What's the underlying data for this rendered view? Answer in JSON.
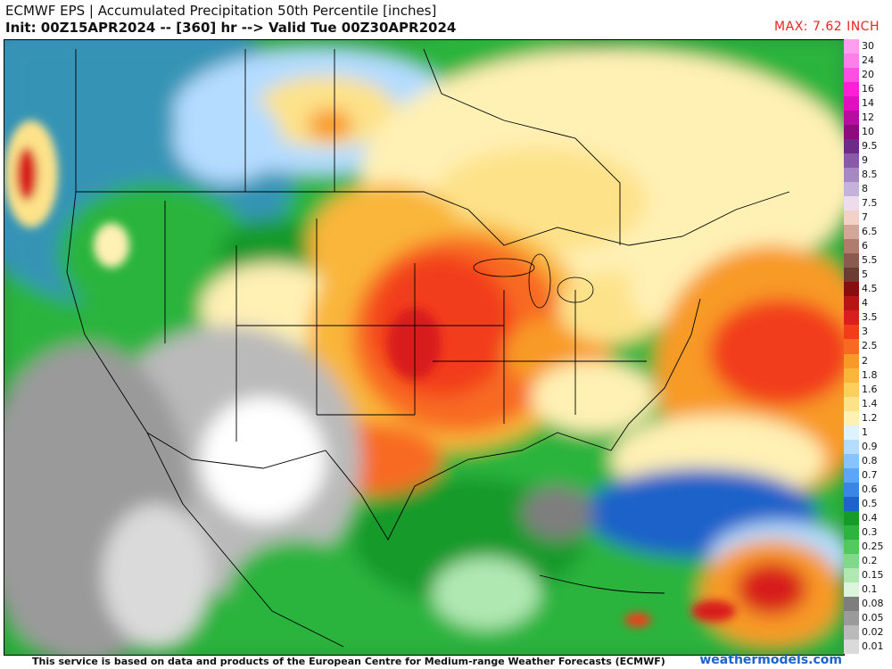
{
  "header": {
    "title": "ECMWF EPS | Accumulated Precipitation 50th Percentile [inches]",
    "subtitle": "Init: 00Z15APR2024 -- [360] hr --> Valid Tue 00Z30APR2024",
    "max_label": "MAX: 7.62 INCH"
  },
  "legend": [
    {
      "label": "30",
      "color": "#ff9ef0"
    },
    {
      "label": "24",
      "color": "#ff7fe8"
    },
    {
      "label": "20",
      "color": "#ff4fe0"
    },
    {
      "label": "16",
      "color": "#ff1fd6"
    },
    {
      "label": "14",
      "color": "#e00fbf"
    },
    {
      "label": "12",
      "color": "#b80d9e"
    },
    {
      "label": "10",
      "color": "#8e0b7c"
    },
    {
      "label": "9.5",
      "color": "#6e2a86"
    },
    {
      "label": "9",
      "color": "#8a5aa8"
    },
    {
      "label": "8.5",
      "color": "#a688c2"
    },
    {
      "label": "8",
      "color": "#c4b2da"
    },
    {
      "label": "7.5",
      "color": "#ecdcec"
    },
    {
      "label": "7",
      "color": "#f2d2c8"
    },
    {
      "label": "6.5",
      "color": "#d2a698"
    },
    {
      "label": "6",
      "color": "#b07c6e"
    },
    {
      "label": "5.5",
      "color": "#8a5a4e"
    },
    {
      "label": "5",
      "color": "#6a3c32"
    },
    {
      "label": "4.5",
      "color": "#8a0d0d"
    },
    {
      "label": "4",
      "color": "#b81414"
    },
    {
      "label": "3.5",
      "color": "#d81e1e"
    },
    {
      "label": "3",
      "color": "#f23c1a"
    },
    {
      "label": "2.5",
      "color": "#f86a22"
    },
    {
      "label": "2",
      "color": "#f89a28"
    },
    {
      "label": "1.8",
      "color": "#f9b63a"
    },
    {
      "label": "1.6",
      "color": "#fbcf5a"
    },
    {
      "label": "1.4",
      "color": "#fde28a"
    },
    {
      "label": "1.2",
      "color": "#fff0b4"
    },
    {
      "label": "1",
      "color": "#dff2ff"
    },
    {
      "label": "0.9",
      "color": "#b4dcff"
    },
    {
      "label": "0.8",
      "color": "#88c2ff"
    },
    {
      "label": "0.7",
      "color": "#5ca6fa"
    },
    {
      "label": "0.6",
      "color": "#3a86e8"
    },
    {
      "label": "0.5",
      "color": "#1f62c9"
    },
    {
      "label": "0.4",
      "color": "#169a2a"
    },
    {
      "label": "0.3",
      "color": "#2cb43e"
    },
    {
      "label": "0.25",
      "color": "#52c85e"
    },
    {
      "label": "0.2",
      "color": "#80d888"
    },
    {
      "label": "0.15",
      "color": "#b0e8b2"
    },
    {
      "label": "0.1",
      "color": "#dcf4dc"
    },
    {
      "label": "0.08",
      "color": "#7e7e7e"
    },
    {
      "label": "0.05",
      "color": "#9a9a9a"
    },
    {
      "label": "0.02",
      "color": "#bababa"
    },
    {
      "label": "0.01",
      "color": "#dadada"
    }
  ],
  "footer": {
    "disclaimer": "This service is based on data and products of the European Centre for Medium-range Weather Forecasts (ECMWF)",
    "site": "weathermodels.com"
  }
}
